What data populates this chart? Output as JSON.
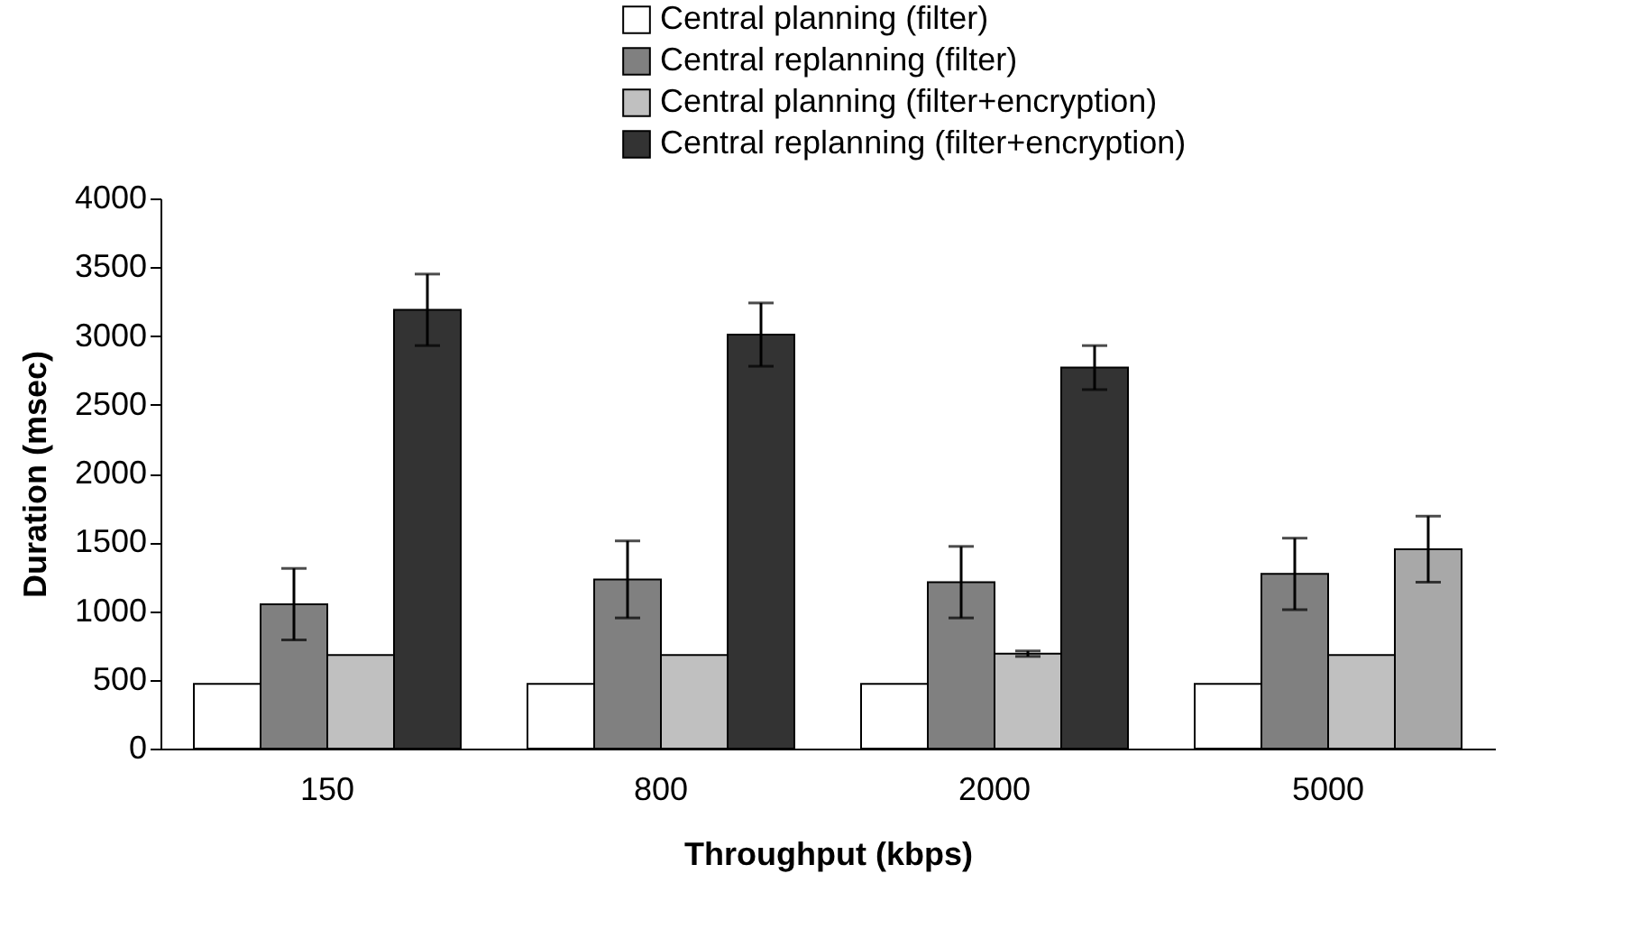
{
  "chart_data": {
    "type": "bar",
    "xlabel": "Throughput (kbps)",
    "ylabel": "Duration (msec)",
    "categories": [
      "150",
      "800",
      "2000",
      "5000"
    ],
    "series": [
      {
        "name": "Central planning (filter)",
        "color": "#ffffff",
        "values": [
          470,
          470,
          470,
          470
        ]
      },
      {
        "name": "Central replanning (filter)",
        "color": "#808080",
        "values": [
          1050,
          1230,
          1210,
          1270
        ],
        "errors": [
          260,
          280,
          260,
          260
        ]
      },
      {
        "name": "Central planning (filter+encryption)",
        "color": "#c0c0c0",
        "values": [
          680,
          680,
          690,
          680
        ],
        "errors": [
          null,
          null,
          20,
          null
        ]
      },
      {
        "name": "Central replanning (filter+encryption)",
        "color": "#333333",
        "colors": [
          "#333333",
          "#333333",
          "#333333",
          "#a8a8a8"
        ],
        "values": [
          3190,
          3010,
          2770,
          1450
        ],
        "errors": [
          260,
          230,
          160,
          240
        ]
      }
    ],
    "ylim": [
      0,
      4000
    ],
    "yticks": [
      0,
      500,
      1000,
      1500,
      2000,
      2500,
      3000,
      3500,
      4000
    ],
    "grid": false,
    "legend": "top right"
  }
}
